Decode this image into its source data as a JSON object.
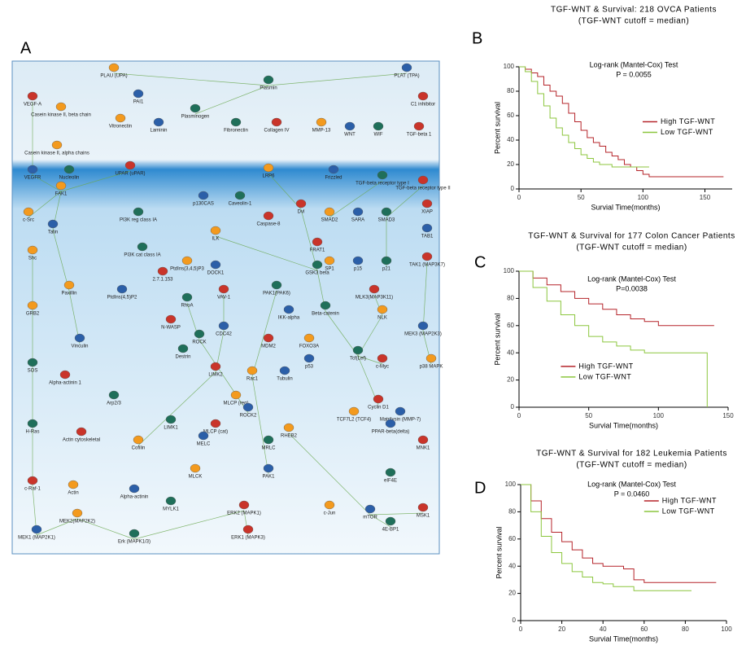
{
  "panel_labels": [
    "A",
    "B",
    "C",
    "D"
  ],
  "diagram": {
    "nodes": [
      "PLAU (UPA)",
      "PLAT (TPA)",
      "Plasmin",
      "VEGF-A",
      "Casein kinase II, beta chain",
      "PAI1",
      "Plasminogen",
      "C1 inhibitor",
      "Vitronectin",
      "Laminin",
      "Fibronectin",
      "Collagen IV",
      "MMP-13",
      "WNT",
      "WIF",
      "TGF-beta 1",
      "Casein kinase II, alpha chains",
      "VEGFR",
      "Nucleolin",
      "UPAR (uPAR)",
      "LRP6",
      "Frizzled",
      "TGF-beta receptor type I",
      "TGF-beta receptor type II",
      "FAK1",
      "p130CAS",
      "Caveolin-1",
      "Dvl",
      "SMAD2",
      "SARA",
      "SMAD3",
      "XIAP",
      "c-Src",
      "Talin",
      "PI3K reg class IA",
      "Caspase-8",
      "ILK",
      "TAB1",
      "PI3K cat class IA",
      "FRAT1",
      "SP1",
      "p15",
      "p21",
      "TAK1 (MAP3K7)",
      "Shc",
      "DOCK1",
      "GSK3 beta",
      "2.7.1.153",
      "PtdIns(3,4,5)P3",
      "PtdIns(4,5)P2",
      "PAK1(PAK6)",
      "VAV-1",
      "Paxillin",
      "IKK-alpha",
      "Beta-catenin",
      "MLK3(MAP3K11)",
      "NLK",
      "MEK3 (MAP2K3)",
      "RhoA",
      "N-WASP",
      "GRB2",
      "CDC42",
      "ROCK",
      "MDM2",
      "FOXO3A",
      "p53",
      "Tcf(Lef)",
      "c-Myc",
      "p38 MAPK",
      "Vinculin",
      "Destrin",
      "LIMK2",
      "Rac1",
      "Tubulin",
      "SOS",
      "Alpha-actinin 1",
      "MLCP (reg)",
      "ROCK2",
      "Arp2/3",
      "Cyclin D1",
      "TCF7L2 (TCF4)",
      "Matrilysin (MMP-7)",
      "LIMK1",
      "MLCP (cat)",
      "RHEB2",
      "PPAR-beta(delta)",
      "H-Ras",
      "Actin cytoskeletal",
      "Cofilin",
      "MELC",
      "MRLC",
      "MNK1",
      "MLCK",
      "PAK1",
      "eIF4E",
      "c-Raf-1",
      "Actin",
      "Alpha-actinin",
      "MYLK1",
      "ERK2 (MAPK1)",
      "c-Jun",
      "mTOR",
      "4E-BP1",
      "MSK1",
      "MEK2(MAP2K2)",
      "MEK1 (MAP2K1)",
      "Erk (MAPK1/3)",
      "ERK1 (MAPK3)"
    ]
  },
  "chart_data": [
    {
      "type": "line",
      "title": "TGF-WNT & Survival: 218 OVCA Patients",
      "subtitle": "(TGF-WNT cutoff = median)",
      "annotations": [
        "Log-rank (Mantel-Cox) Test",
        "P = 0.0055"
      ],
      "x_label": "Survial Time(months)",
      "y_label": "Percent survival",
      "legend": "center right",
      "x": [
        0,
        5,
        10,
        15,
        20,
        25,
        30,
        35,
        40,
        45,
        50,
        55,
        60,
        65,
        70,
        75,
        80,
        85,
        90,
        95,
        100,
        105,
        110,
        120,
        130,
        140,
        150,
        160,
        165
      ],
      "series": [
        {
          "name": "High TGF-WNT",
          "color": "#b5242a",
          "values": [
            100,
            98,
            95,
            92,
            85,
            80,
            76,
            70,
            62,
            55,
            48,
            42,
            38,
            35,
            30,
            27,
            24,
            20,
            18,
            15,
            12,
            10,
            10,
            10,
            10,
            10,
            10,
            10,
            10
          ]
        },
        {
          "name": "Low TGF-WNT",
          "color": "#8cc63e",
          "values": [
            100,
            96,
            88,
            78,
            68,
            58,
            50,
            44,
            38,
            33,
            28,
            25,
            22,
            20,
            20,
            18,
            18,
            18,
            18,
            18,
            18,
            18,
            null,
            null,
            null,
            null,
            null,
            null,
            null
          ]
        }
      ],
      "xlim": [
        0,
        172
      ],
      "xticks": [
        0,
        50,
        100,
        150
      ],
      "ylim": [
        0,
        100
      ],
      "yticks": [
        0,
        20,
        40,
        60,
        80,
        100
      ]
    },
    {
      "type": "line",
      "title": "TGF-WNT & Survival for 177 Colon Cancer Patients",
      "subtitle": "(TGF-WNT cutoff = median)",
      "annotations": [
        "Log-rank (Mantel-Cox) Test",
        "P=0.0038"
      ],
      "x_label": "Survial Time(months)",
      "y_label": "Percent survival",
      "legend": "lower left",
      "x": [
        0,
        10,
        20,
        30,
        40,
        50,
        60,
        70,
        80,
        90,
        100,
        110,
        120,
        130,
        135,
        140
      ],
      "series": [
        {
          "name": "High TGF-WNT",
          "color": "#b5242a",
          "values": [
            100,
            95,
            90,
            85,
            80,
            76,
            72,
            68,
            65,
            63,
            60,
            60,
            60,
            60,
            60,
            60
          ]
        },
        {
          "name": "Low TGF-WNT",
          "color": "#8cc63e",
          "values": [
            100,
            88,
            78,
            68,
            60,
            52,
            48,
            45,
            42,
            40,
            40,
            40,
            40,
            40,
            0,
            null
          ]
        }
      ],
      "xlim": [
        0,
        150
      ],
      "xticks": [
        0,
        50,
        100,
        150
      ],
      "ylim": [
        0,
        100
      ],
      "yticks": [
        0,
        20,
        40,
        60,
        80,
        100
      ]
    },
    {
      "type": "line",
      "title": "TGF-WNT & Survival for 182 Leukemia Patients",
      "subtitle": "(TGF-WNT cutoff = median)",
      "annotations": [
        "Log-rank (Mantel-Cox) Test",
        "P = 0.0460"
      ],
      "x_label": "Survial Time(months)",
      "y_label": "Percent survival",
      "legend": "upper right",
      "x": [
        0,
        5,
        10,
        15,
        20,
        25,
        30,
        35,
        40,
        45,
        50,
        55,
        60,
        70,
        80,
        83,
        90,
        95
      ],
      "series": [
        {
          "name": "High TGF-WNT",
          "color": "#b5242a",
          "values": [
            100,
            88,
            75,
            65,
            58,
            52,
            46,
            42,
            40,
            40,
            38,
            30,
            28,
            28,
            28,
            28,
            28,
            28
          ]
        },
        {
          "name": "Low TGF-WNT",
          "color": "#8cc63e",
          "values": [
            100,
            80,
            62,
            50,
            42,
            36,
            32,
            28,
            27,
            25,
            25,
            22,
            22,
            22,
            22,
            22,
            null,
            null
          ]
        }
      ],
      "xlim": [
        0,
        100
      ],
      "xticks": [
        0,
        20,
        40,
        60,
        80,
        100
      ],
      "ylim": [
        0,
        100
      ],
      "yticks": [
        0,
        20,
        40,
        60,
        80,
        100
      ]
    }
  ]
}
